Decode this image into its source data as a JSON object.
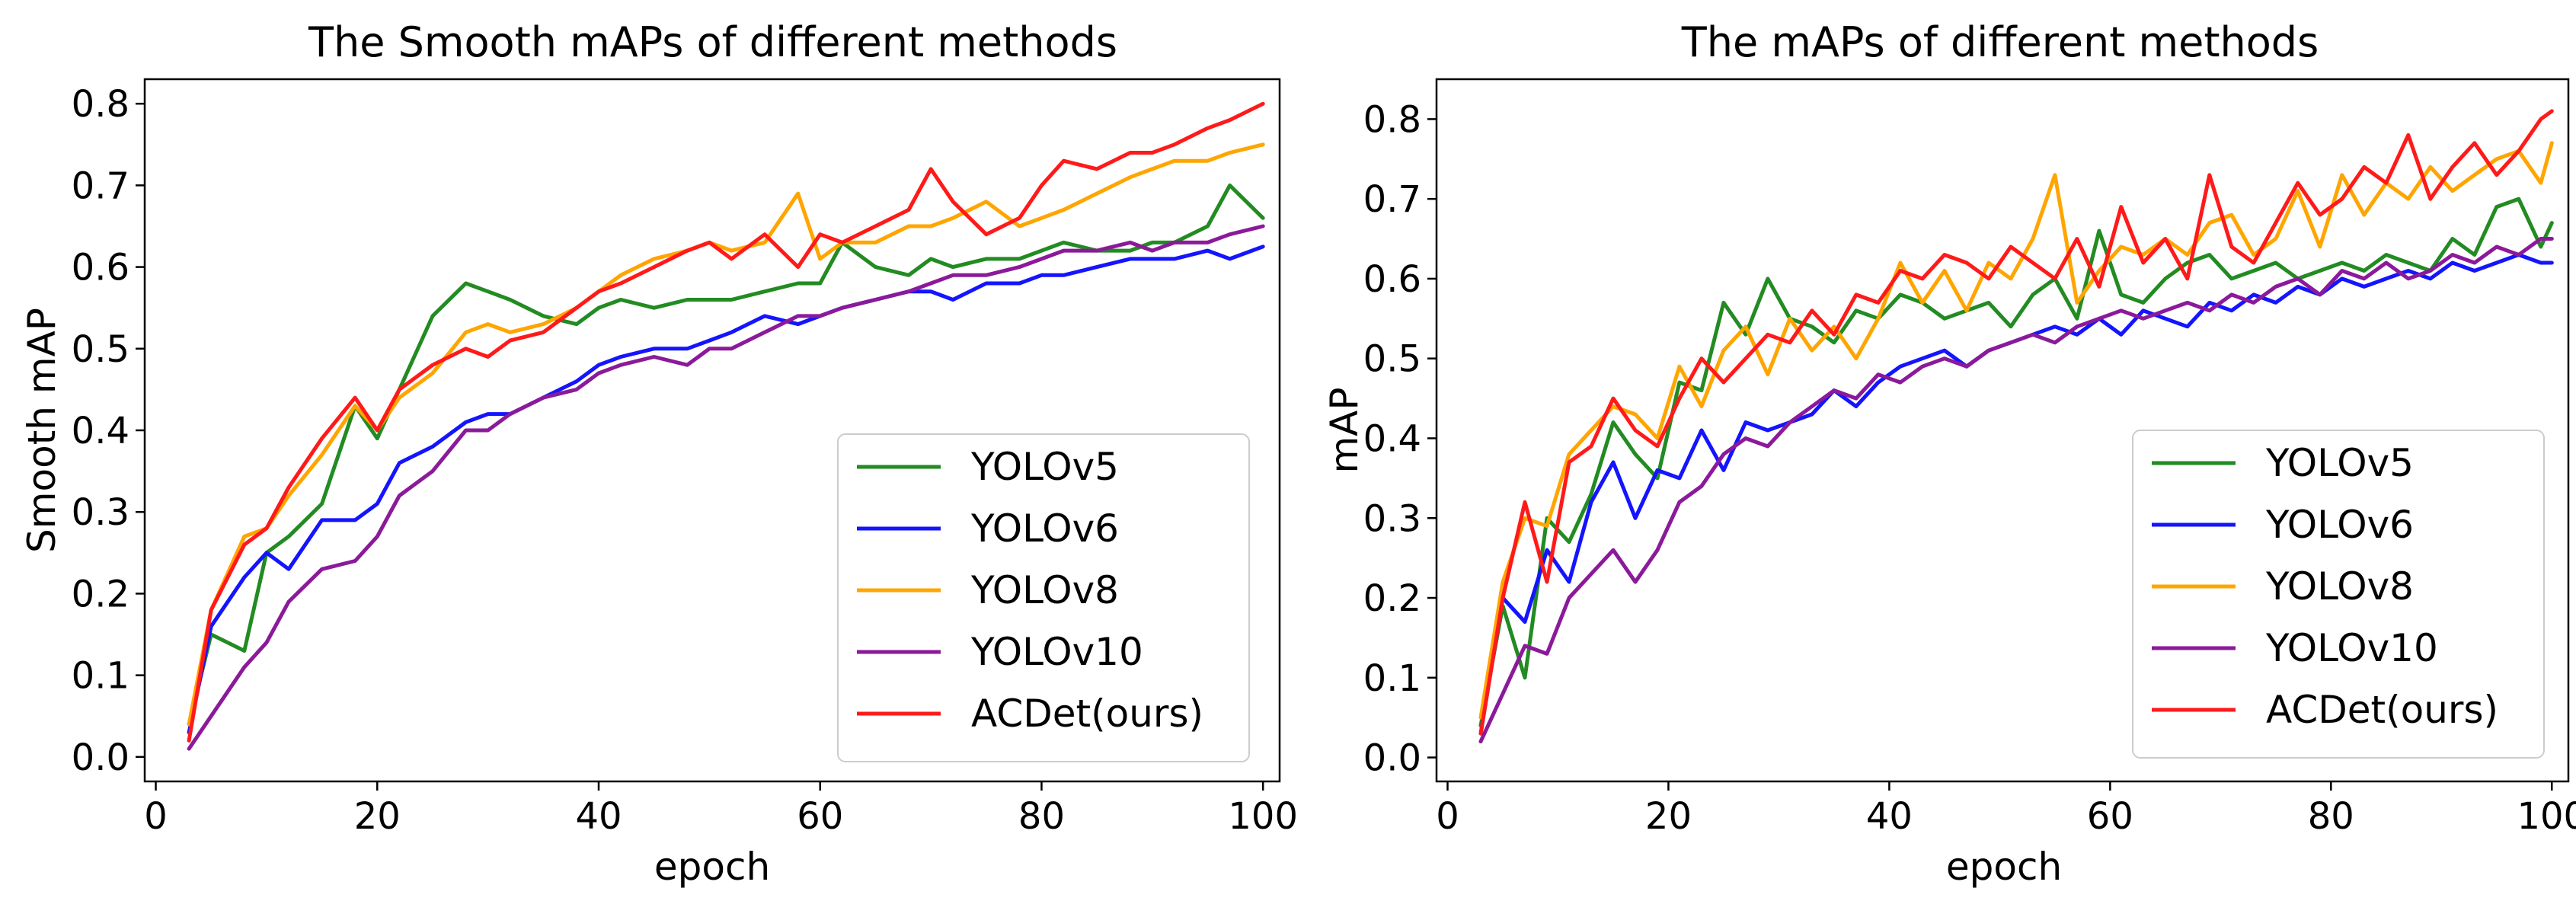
{
  "chart_data": [
    {
      "type": "line",
      "title": "The Smooth mAPs of different methods",
      "xlabel": "epoch",
      "ylabel": "Smooth mAP",
      "xlim": [
        -1,
        101.5
      ],
      "ylim": [
        -0.03,
        0.83
      ],
      "xticks": [
        "0",
        "20",
        "40",
        "60",
        "80",
        "100"
      ],
      "yticks": [
        "0.0",
        "0.1",
        "0.2",
        "0.3",
        "0.4",
        "0.5",
        "0.6",
        "0.7",
        "0.8"
      ],
      "grid": false,
      "legend_position": "bottom-right",
      "x": [
        3,
        5,
        8,
        10,
        12,
        15,
        18,
        20,
        22,
        25,
        28,
        30,
        32,
        35,
        38,
        40,
        42,
        45,
        48,
        50,
        52,
        55,
        58,
        60,
        62,
        65,
        68,
        70,
        72,
        75,
        78,
        80,
        82,
        85,
        88,
        90,
        92,
        95,
        97,
        100
      ],
      "series": [
        {
          "name": "YOLOv5",
          "color": "#228b22",
          "values": [
            0.04,
            0.15,
            0.13,
            0.25,
            0.27,
            0.31,
            0.43,
            0.39,
            0.45,
            0.54,
            0.58,
            0.57,
            0.56,
            0.54,
            0.53,
            0.55,
            0.56,
            0.55,
            0.56,
            0.56,
            0.56,
            0.57,
            0.58,
            0.58,
            0.63,
            0.6,
            0.59,
            0.61,
            0.6,
            0.61,
            0.61,
            0.62,
            0.63,
            0.62,
            0.62,
            0.63,
            0.63,
            0.65,
            0.7,
            0.66
          ]
        },
        {
          "name": "YOLOv6",
          "color": "#1414ff",
          "values": [
            0.03,
            0.16,
            0.22,
            0.25,
            0.23,
            0.29,
            0.29,
            0.31,
            0.36,
            0.38,
            0.41,
            0.42,
            0.42,
            0.44,
            0.46,
            0.48,
            0.49,
            0.5,
            0.5,
            0.51,
            0.52,
            0.54,
            0.53,
            0.54,
            0.55,
            0.56,
            0.57,
            0.57,
            0.56,
            0.58,
            0.58,
            0.59,
            0.59,
            0.6,
            0.61,
            0.61,
            0.61,
            0.62,
            0.61,
            0.625
          ]
        },
        {
          "name": "YOLOv8",
          "color": "#ffa500",
          "values": [
            0.04,
            0.18,
            0.27,
            0.28,
            0.32,
            0.37,
            0.43,
            0.4,
            0.44,
            0.47,
            0.52,
            0.53,
            0.52,
            0.53,
            0.55,
            0.57,
            0.59,
            0.61,
            0.62,
            0.63,
            0.62,
            0.63,
            0.69,
            0.61,
            0.63,
            0.63,
            0.65,
            0.65,
            0.66,
            0.68,
            0.65,
            0.66,
            0.67,
            0.69,
            0.71,
            0.72,
            0.73,
            0.73,
            0.74,
            0.75
          ]
        },
        {
          "name": "YOLOv10",
          "color": "#8b1a9a",
          "values": [
            0.01,
            0.05,
            0.11,
            0.14,
            0.19,
            0.23,
            0.24,
            0.27,
            0.32,
            0.35,
            0.4,
            0.4,
            0.42,
            0.44,
            0.45,
            0.47,
            0.48,
            0.49,
            0.48,
            0.5,
            0.5,
            0.52,
            0.54,
            0.54,
            0.55,
            0.56,
            0.57,
            0.58,
            0.59,
            0.59,
            0.6,
            0.61,
            0.62,
            0.62,
            0.63,
            0.62,
            0.63,
            0.63,
            0.64,
            0.65
          ]
        },
        {
          "name": "ACDet(ours)",
          "color": "#ff1a1a",
          "values": [
            0.02,
            0.18,
            0.26,
            0.28,
            0.33,
            0.39,
            0.44,
            0.4,
            0.45,
            0.48,
            0.5,
            0.49,
            0.51,
            0.52,
            0.55,
            0.57,
            0.58,
            0.6,
            0.62,
            0.63,
            0.61,
            0.64,
            0.6,
            0.64,
            0.63,
            0.65,
            0.67,
            0.72,
            0.68,
            0.64,
            0.66,
            0.7,
            0.73,
            0.72,
            0.74,
            0.74,
            0.75,
            0.77,
            0.78,
            0.8
          ]
        }
      ]
    },
    {
      "type": "line",
      "title": "The mAPs of different methods",
      "xlabel": "epoch",
      "ylabel": "mAP",
      "xlim": [
        -1,
        101.5
      ],
      "ylim": [
        -0.03,
        0.85
      ],
      "xticks": [
        "0",
        "20",
        "40",
        "60",
        "80",
        "100"
      ],
      "yticks": [
        "0.0",
        "0.1",
        "0.2",
        "0.3",
        "0.4",
        "0.5",
        "0.6",
        "0.7",
        "0.8"
      ],
      "grid": false,
      "legend_position": "bottom-right",
      "x": [
        3,
        5,
        7,
        9,
        11,
        13,
        15,
        17,
        19,
        21,
        23,
        25,
        27,
        29,
        31,
        33,
        35,
        37,
        39,
        41,
        43,
        45,
        47,
        49,
        51,
        53,
        55,
        57,
        59,
        61,
        63,
        65,
        67,
        69,
        71,
        73,
        75,
        77,
        79,
        81,
        83,
        85,
        87,
        89,
        91,
        93,
        95,
        97,
        99,
        100
      ],
      "series": [
        {
          "name": "YOLOv5",
          "color": "#228b22",
          "values": [
            0.04,
            0.19,
            0.1,
            0.3,
            0.27,
            0.33,
            0.42,
            0.38,
            0.35,
            0.47,
            0.46,
            0.57,
            0.53,
            0.6,
            0.55,
            0.54,
            0.52,
            0.56,
            0.55,
            0.58,
            0.57,
            0.55,
            0.56,
            0.57,
            0.54,
            0.58,
            0.6,
            0.55,
            0.66,
            0.58,
            0.57,
            0.6,
            0.62,
            0.63,
            0.6,
            0.61,
            0.62,
            0.6,
            0.61,
            0.62,
            0.61,
            0.63,
            0.62,
            0.61,
            0.65,
            0.63,
            0.69,
            0.7,
            0.64,
            0.67
          ]
        },
        {
          "name": "YOLOv6",
          "color": "#1414ff",
          "values": [
            0.03,
            0.2,
            0.17,
            0.26,
            0.22,
            0.32,
            0.37,
            0.3,
            0.36,
            0.35,
            0.41,
            0.36,
            0.42,
            0.41,
            0.42,
            0.43,
            0.46,
            0.44,
            0.47,
            0.49,
            0.5,
            0.51,
            0.49,
            0.51,
            0.52,
            0.53,
            0.54,
            0.53,
            0.55,
            0.53,
            0.56,
            0.55,
            0.54,
            0.57,
            0.56,
            0.58,
            0.57,
            0.59,
            0.58,
            0.6,
            0.59,
            0.6,
            0.61,
            0.6,
            0.62,
            0.61,
            0.62,
            0.63,
            0.62,
            0.62
          ]
        },
        {
          "name": "YOLOv8",
          "color": "#ffa500",
          "values": [
            0.05,
            0.22,
            0.3,
            0.29,
            0.38,
            0.41,
            0.44,
            0.43,
            0.4,
            0.49,
            0.44,
            0.51,
            0.54,
            0.48,
            0.55,
            0.51,
            0.54,
            0.5,
            0.55,
            0.62,
            0.57,
            0.61,
            0.56,
            0.62,
            0.6,
            0.65,
            0.73,
            0.57,
            0.61,
            0.64,
            0.63,
            0.65,
            0.63,
            0.67,
            0.68,
            0.63,
            0.65,
            0.71,
            0.64,
            0.73,
            0.68,
            0.72,
            0.7,
            0.74,
            0.71,
            0.73,
            0.75,
            0.76,
            0.72,
            0.77
          ]
        },
        {
          "name": "YOLOv10",
          "color": "#8b1a9a",
          "values": [
            0.02,
            0.08,
            0.14,
            0.13,
            0.2,
            0.23,
            0.26,
            0.22,
            0.26,
            0.32,
            0.34,
            0.38,
            0.4,
            0.39,
            0.42,
            0.44,
            0.46,
            0.45,
            0.48,
            0.47,
            0.49,
            0.5,
            0.49,
            0.51,
            0.52,
            0.53,
            0.52,
            0.54,
            0.55,
            0.56,
            0.55,
            0.56,
            0.57,
            0.56,
            0.58,
            0.57,
            0.59,
            0.6,
            0.58,
            0.61,
            0.6,
            0.62,
            0.6,
            0.61,
            0.63,
            0.62,
            0.64,
            0.63,
            0.65,
            0.65
          ]
        },
        {
          "name": "ACDet(ours)",
          "color": "#ff1a1a",
          "values": [
            0.03,
            0.2,
            0.32,
            0.22,
            0.37,
            0.39,
            0.45,
            0.41,
            0.39,
            0.45,
            0.5,
            0.47,
            0.5,
            0.53,
            0.52,
            0.56,
            0.53,
            0.58,
            0.57,
            0.61,
            0.6,
            0.63,
            0.62,
            0.6,
            0.64,
            0.62,
            0.6,
            0.65,
            0.59,
            0.69,
            0.62,
            0.65,
            0.6,
            0.73,
            0.64,
            0.62,
            0.67,
            0.72,
            0.68,
            0.7,
            0.74,
            0.72,
            0.78,
            0.7,
            0.74,
            0.77,
            0.73,
            0.76,
            0.8,
            0.81
          ]
        }
      ]
    }
  ]
}
